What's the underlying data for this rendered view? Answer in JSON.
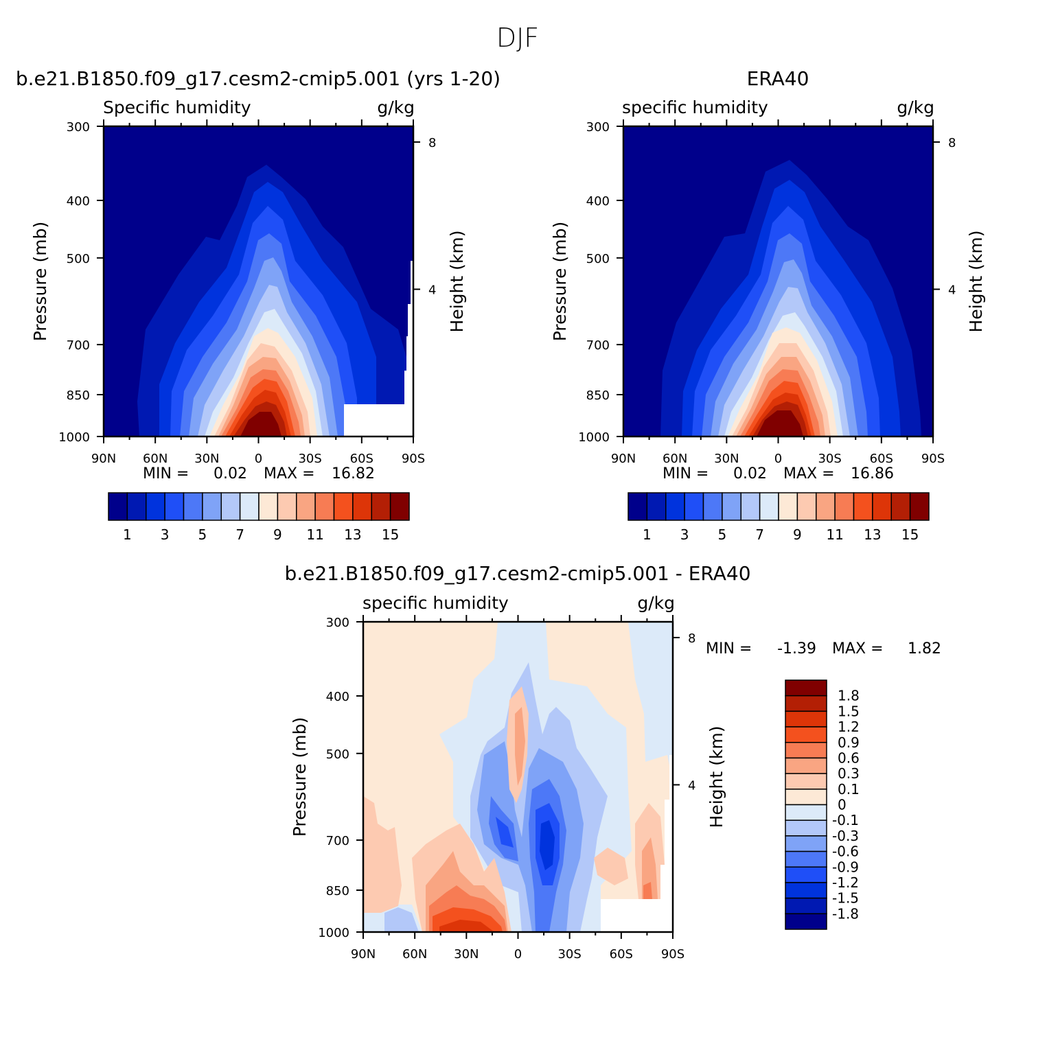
{
  "page": {
    "title": "DJF"
  },
  "chart_data": [
    {
      "id": "model",
      "type": "heatmap",
      "title": "b.e21.B1850.f09_g17.cesm2-cmip5.001 (yrs 1-20)",
      "left_label": "Specific humidity",
      "right_label": "g/kg",
      "xlabel": "",
      "ylabel": "Pressure (mb)",
      "y2label": "Height (km)",
      "x_ticks": [
        "90N",
        "60N",
        "30N",
        "0",
        "30S",
        "60S",
        "90S"
      ],
      "y_ticks": [
        "300",
        "400",
        "500",
        "700",
        "850",
        "1000"
      ],
      "y2_ticks": [
        "8",
        "4"
      ],
      "stats": {
        "min_label": "MIN =",
        "min": "0.02",
        "max_label": "MAX =",
        "max": "16.82"
      },
      "colorbar_labels": [
        "1",
        "3",
        "5",
        "7",
        "9",
        "11",
        "13",
        "15"
      ]
    },
    {
      "id": "obs",
      "type": "heatmap",
      "title": "ERA40",
      "left_label": "specific humidity",
      "right_label": "g/kg",
      "xlabel": "",
      "ylabel": "Pressure (mb)",
      "y2label": "Height (km)",
      "x_ticks": [
        "90N",
        "60N",
        "30N",
        "0",
        "30S",
        "60S",
        "90S"
      ],
      "y_ticks": [
        "300",
        "400",
        "500",
        "700",
        "850",
        "1000"
      ],
      "y2_ticks": [
        "8",
        "4"
      ],
      "stats": {
        "min_label": "MIN =",
        "min": "0.02",
        "max_label": "MAX =",
        "max": "16.86"
      },
      "colorbar_labels": [
        "1",
        "3",
        "5",
        "7",
        "9",
        "11",
        "13",
        "15"
      ]
    },
    {
      "id": "diff",
      "type": "heatmap",
      "title": "b.e21.B1850.f09_g17.cesm2-cmip5.001 - ERA40",
      "left_label": "specific humidity",
      "right_label": "g/kg",
      "xlabel": "",
      "ylabel": "Pressure (mb)",
      "y2label": "Height (km)",
      "x_ticks": [
        "90N",
        "60N",
        "30N",
        "0",
        "30S",
        "60S",
        "90S"
      ],
      "y_ticks": [
        "300",
        "400",
        "500",
        "700",
        "850",
        "1000"
      ],
      "y2_ticks": [
        "8",
        "4"
      ],
      "stats": {
        "min_label": "MIN =",
        "min": "-1.39",
        "max_label": "MAX =",
        "max": "1.82"
      },
      "colorbar_labels": [
        "1.8",
        "1.5",
        "1.2",
        "0.9",
        "0.6",
        "0.3",
        "0.1",
        "0",
        "-0.1",
        "-0.3",
        "-0.6",
        "-0.9",
        "-1.2",
        "-1.5",
        "-1.8"
      ]
    }
  ],
  "colors": {
    "abs_palette": [
      "#00008b",
      "#0019b2",
      "#0033dd",
      "#1f4ff7",
      "#4d78f7",
      "#7fa3f7",
      "#b3c8f9",
      "#dceaf9",
      "#fde9d6",
      "#fdcab1",
      "#f9a582",
      "#f77c54",
      "#f4511e",
      "#dd3508",
      "#b31f05",
      "#800000"
    ],
    "diff_palette": [
      "#00008b",
      "#0019b2",
      "#0033dd",
      "#1f4ff7",
      "#4d78f7",
      "#7fa3f7",
      "#b3c8f9",
      "#dceaf9",
      "#fde9d6",
      "#fdcab1",
      "#f9a582",
      "#f77c54",
      "#f4511e",
      "#dd3508",
      "#b31f05",
      "#800000"
    ]
  }
}
